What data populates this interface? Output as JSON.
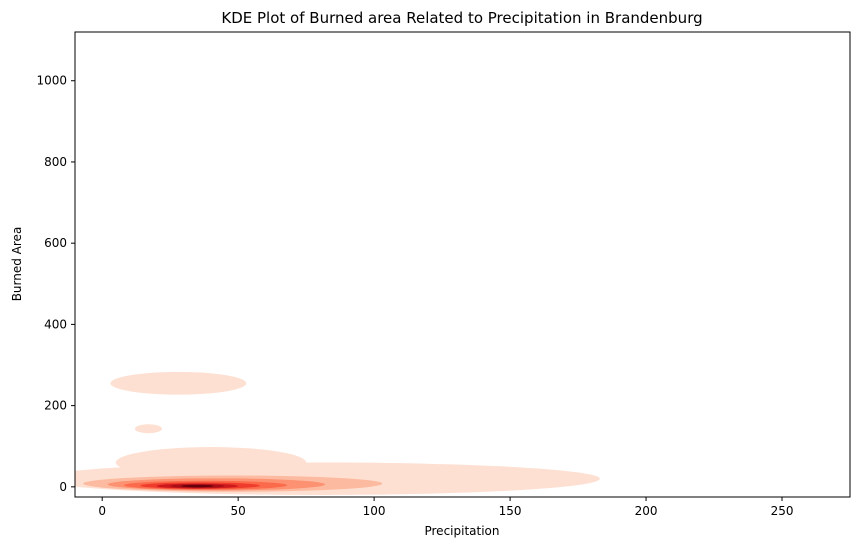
{
  "chart_data": {
    "type": "kde",
    "title": "KDE Plot of Burned area Related to Precipitation in Brandenburg",
    "xlabel": "Precipitation",
    "ylabel": "Burned Area",
    "xlim": [
      -10,
      275
    ],
    "ylim": [
      -25,
      1120
    ],
    "xticks": [
      0,
      50,
      100,
      150,
      200,
      250
    ],
    "yticks": [
      0,
      200,
      400,
      600,
      800,
      1000
    ],
    "grid": false,
    "colormap": "Reds",
    "colors": [
      "#fff5f0",
      "#fee0d2",
      "#fcbba1",
      "#fc9272",
      "#fb6a4a",
      "#ef3b2c",
      "#cb181d",
      "#a50f15",
      "#67000d"
    ],
    "density_regions": [
      {
        "level": 1,
        "cx": 80,
        "cy": 20,
        "rx": 103,
        "ry": 40
      },
      {
        "level": 1,
        "cx": 40,
        "cy": 60,
        "rx": 35,
        "ry": 38
      },
      {
        "level": 1,
        "cx": 28,
        "cy": 255,
        "rx": 25,
        "ry": 28
      },
      {
        "level": 1,
        "cx": 17,
        "cy": 143,
        "rx": 5,
        "ry": 11
      },
      {
        "level": 2,
        "cx": 48,
        "cy": 8,
        "rx": 55,
        "ry": 20
      },
      {
        "level": 3,
        "cx": 42,
        "cy": 6,
        "rx": 40,
        "ry": 15
      },
      {
        "level": 4,
        "cx": 38,
        "cy": 4,
        "rx": 30,
        "ry": 11
      },
      {
        "level": 5,
        "cx": 36,
        "cy": 3,
        "rx": 22,
        "ry": 8
      },
      {
        "level": 6,
        "cx": 35,
        "cy": 2,
        "rx": 15,
        "ry": 6
      },
      {
        "level": 7,
        "cx": 35,
        "cy": 2,
        "rx": 10,
        "ry": 4.5
      },
      {
        "level": 8,
        "cx": 35,
        "cy": 2,
        "rx": 6,
        "ry": 3
      }
    ]
  }
}
